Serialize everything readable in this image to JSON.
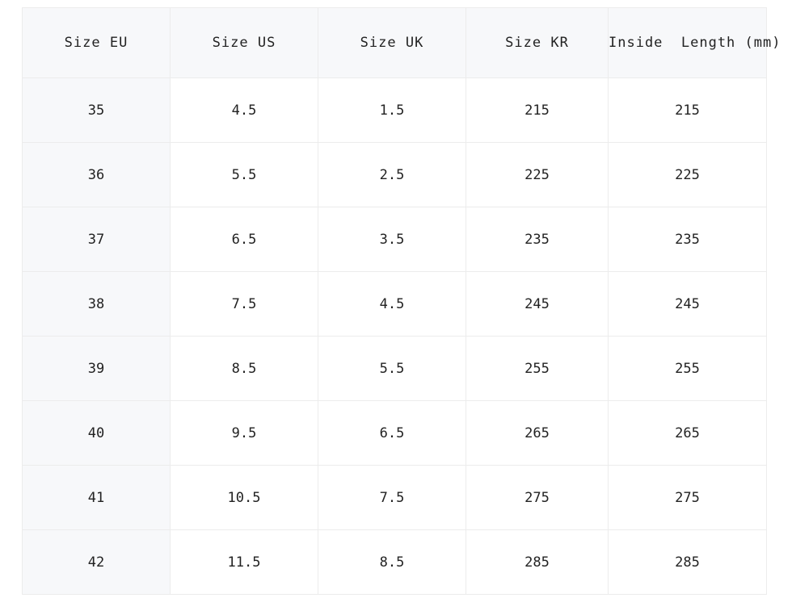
{
  "table": {
    "header": [
      "Size EU",
      "Size US",
      "Size UK",
      "Size KR",
      "Inside  Length (mm)"
    ],
    "rows": [
      [
        35,
        4.5,
        1.5,
        215,
        215
      ],
      [
        36,
        5.5,
        2.5,
        225,
        225
      ],
      [
        37,
        6.5,
        3.5,
        235,
        235
      ],
      [
        38,
        7.5,
        4.5,
        245,
        245
      ],
      [
        39,
        8.5,
        5.5,
        255,
        255
      ],
      [
        40,
        9.5,
        6.5,
        265,
        265
      ],
      [
        41,
        10.5,
        7.5,
        275,
        275
      ],
      [
        42,
        11.5,
        8.5,
        285,
        285
      ]
    ]
  }
}
